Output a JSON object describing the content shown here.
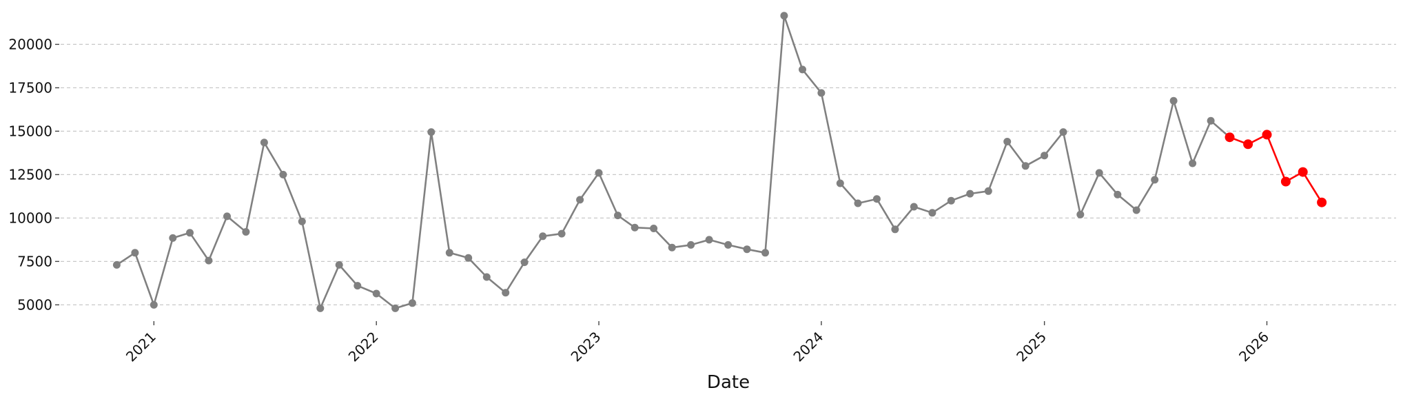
{
  "chart_data": {
    "type": "line",
    "title": "",
    "xlabel": "Date",
    "ylabel": "",
    "x_ticks": [
      "2021",
      "2022",
      "2023",
      "2024",
      "2025",
      "2026"
    ],
    "y_ticks": [
      5000,
      7500,
      10000,
      12500,
      15000,
      17500,
      20000
    ],
    "ylim": [
      4300,
      22000
    ],
    "xlim": [
      "2020-08-01",
      "2026-08-01"
    ],
    "grid": "horizontal dashed",
    "legend": "none",
    "series": [
      {
        "color": "#808080",
        "x": [
          "2020-11-01",
          "2020-12-01",
          "2021-01-01",
          "2021-02-01",
          "2021-03-01",
          "2021-04-01",
          "2021-05-01",
          "2021-06-01",
          "2021-07-01",
          "2021-08-01",
          "2021-09-01",
          "2021-10-01",
          "2021-11-01",
          "2021-12-01",
          "2022-01-01",
          "2022-02-01",
          "2022-03-01",
          "2022-04-01",
          "2022-05-01",
          "2022-06-01",
          "2022-07-01",
          "2022-08-01",
          "2022-09-01",
          "2022-10-01",
          "2022-11-01",
          "2022-12-01",
          "2023-01-01",
          "2023-02-01",
          "2023-03-01",
          "2023-04-01",
          "2023-05-01",
          "2023-06-01",
          "2023-07-01",
          "2023-08-01",
          "2023-09-01",
          "2023-10-01",
          "2023-11-01",
          "2023-12-01",
          "2024-01-01",
          "2024-02-01",
          "2024-03-01",
          "2024-04-01",
          "2024-05-01",
          "2024-06-01",
          "2024-07-01",
          "2024-08-01",
          "2024-09-01",
          "2024-10-01",
          "2024-11-01",
          "2024-12-01",
          "2025-01-01",
          "2025-02-01",
          "2025-03-01",
          "2025-04-01",
          "2025-05-01",
          "2025-06-01",
          "2025-07-01",
          "2025-08-01",
          "2025-09-01",
          "2025-10-01",
          "2025-11-01"
        ],
        "y": [
          7300,
          8000,
          5000,
          8850,
          9150,
          7550,
          10100,
          9200,
          14350,
          12500,
          9800,
          4800,
          7300,
          6100,
          5650,
          4800,
          5100,
          14950,
          8000,
          7700,
          6600,
          5700,
          7450,
          8950,
          9100,
          11050,
          12600,
          10150,
          9450,
          9400,
          8300,
          8450,
          8750,
          8450,
          8200,
          8000,
          21650,
          18550,
          17200,
          12000,
          10850,
          11100,
          9350,
          10650,
          10300,
          11000,
          11400,
          11550,
          14400,
          13000,
          13600,
          14950,
          10200,
          12600,
          11350,
          10450,
          12200,
          16750,
          13150,
          15600,
          14650
        ]
      },
      {
        "color": "#ff0000",
        "x": [
          "2025-11-01",
          "2025-12-01",
          "2026-01-01",
          "2026-02-01",
          "2026-03-01",
          "2026-04-01"
        ],
        "y": [
          14650,
          14250,
          14800,
          12100,
          12650,
          10900
        ]
      }
    ]
  }
}
